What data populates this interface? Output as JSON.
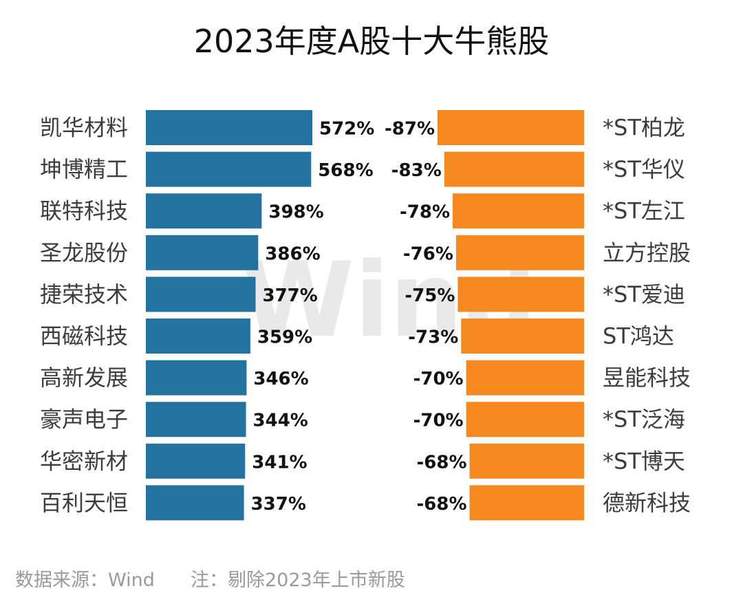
{
  "chart_data": {
    "type": "bar",
    "title": "2023年度A股十大牛熊股",
    "watermark": "Wind",
    "source": "数据来源：Wind",
    "note": "注：剔除2023年上市新股",
    "bull": {
      "categories": [
        "凯华材料",
        "坤博精工",
        "联特科技",
        "圣龙股份",
        "捷荣技术",
        "西磁科技",
        "高新发展",
        "豪声电子",
        "华密新材",
        "百利天恒"
      ],
      "values": [
        572,
        568,
        398,
        386,
        377,
        359,
        346,
        344,
        341,
        337
      ],
      "labels": [
        "572%",
        "568%",
        "398%",
        "386%",
        "377%",
        "359%",
        "346%",
        "344%",
        "341%",
        "337%"
      ],
      "color": "#23729f"
    },
    "bear": {
      "categories": [
        "*ST柏龙",
        "*ST华仪",
        "*ST左江",
        "立方控股",
        "*ST爱迪",
        "ST鸿达",
        "昱能科技",
        "*ST泛海",
        "*ST博天",
        "德新科技"
      ],
      "values": [
        -87,
        -83,
        -78,
        -76,
        -75,
        -73,
        -70,
        -70,
        -68,
        -68
      ],
      "labels": [
        "-87%",
        "-83%",
        "-78%",
        "-76%",
        "-75%",
        "-73%",
        "-70%",
        "-70%",
        "-68%",
        "-68%"
      ],
      "color": "#f5881e"
    }
  }
}
